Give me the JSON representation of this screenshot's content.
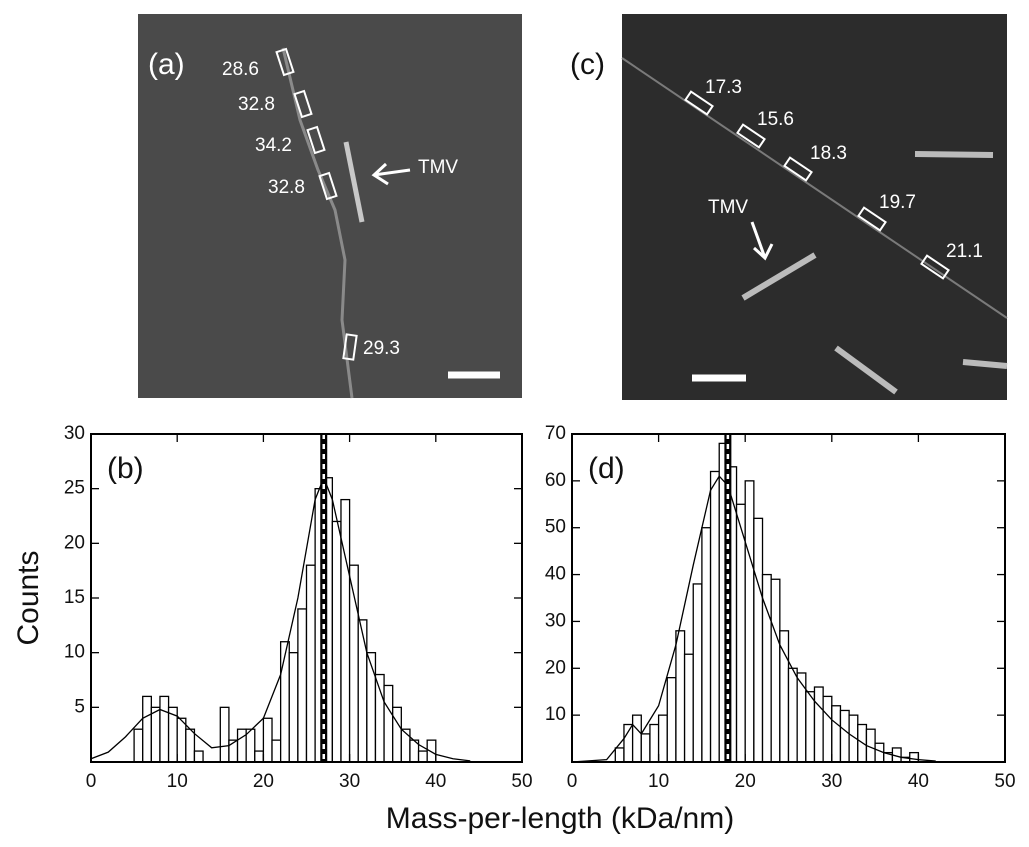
{
  "figure": {
    "xlabel": "Mass-per-length (kDa/nm)",
    "ylabel": "Counts"
  },
  "images": [
    {
      "panel": "(a)",
      "arrow_label": "TMV",
      "annotations": [
        28.6,
        32.8,
        34.2,
        32.8,
        29.3
      ]
    },
    {
      "panel": "(c)",
      "arrow_label": "TMV",
      "annotations": [
        17.3,
        15.6,
        18.3,
        19.7,
        21.1
      ]
    }
  ],
  "chart_data": [
    {
      "type": "histogram",
      "panel": "(b)",
      "bins": [
        5,
        6,
        7,
        8,
        9,
        10,
        11,
        12,
        13,
        14,
        15,
        16,
        17,
        18,
        19,
        20,
        21,
        22,
        23,
        24,
        25,
        26,
        27,
        28,
        29,
        30,
        31,
        32,
        33,
        34,
        35,
        36,
        37,
        38,
        39,
        40
      ],
      "values": [
        3,
        6,
        5,
        6,
        5,
        4,
        3,
        1,
        0,
        0,
        5,
        2,
        3,
        3,
        1,
        4,
        2,
        11,
        10,
        14,
        18,
        25,
        26,
        22,
        24,
        18,
        13,
        10,
        8,
        7,
        5,
        3,
        2,
        1,
        2
      ],
      "fit": {
        "x": [
          0,
          2,
          4,
          6,
          8,
          10,
          12,
          14,
          16,
          18,
          20,
          22,
          24,
          26,
          27,
          28,
          30,
          32,
          34,
          36,
          38,
          40,
          42,
          44
        ],
        "y": [
          0.3,
          0.9,
          2.3,
          4,
          4.8,
          4.2,
          2.6,
          1.3,
          1.5,
          2.5,
          4,
          8,
          15,
          24,
          26,
          24,
          17,
          10,
          5.5,
          3,
          1.6,
          0.7,
          0.3,
          0.1
        ]
      },
      "marker": 27,
      "xlim": [
        0,
        50
      ],
      "xticks": [
        0,
        10,
        20,
        30,
        40,
        50
      ],
      "ylim": [
        0,
        30
      ],
      "yticks": [
        5,
        10,
        15,
        20,
        25,
        30
      ]
    },
    {
      "type": "histogram",
      "panel": "(d)",
      "bins": [
        5,
        6,
        7,
        8,
        9,
        10,
        11,
        12,
        13,
        14,
        15,
        16,
        17,
        18,
        19,
        20,
        21,
        22,
        23,
        24,
        25,
        26,
        27,
        28,
        29,
        30,
        31,
        32,
        33,
        34,
        35,
        36,
        37,
        38,
        39,
        40
      ],
      "values": [
        3,
        8,
        10,
        6,
        8,
        10,
        18,
        28,
        23,
        38,
        50,
        62,
        68,
        63,
        55,
        60,
        52,
        40,
        39,
        28,
        20,
        19,
        15,
        16,
        14,
        12,
        11,
        10,
        8,
        7,
        4,
        2,
        3,
        1,
        2
      ],
      "fit": {
        "x": [
          0,
          4,
          6,
          7,
          8,
          10,
          12,
          14,
          16,
          17,
          18,
          20,
          22,
          24,
          26,
          28,
          30,
          32,
          34,
          36,
          38,
          40,
          42
        ],
        "y": [
          0,
          0.5,
          5,
          8,
          6,
          12,
          25,
          42,
          58,
          61,
          59,
          47,
          35,
          25,
          18,
          13,
          9,
          6,
          3.5,
          2,
          1,
          0.5,
          0.2
        ]
      },
      "marker": 18,
      "xlim": [
        0,
        50
      ],
      "xticks": [
        0,
        10,
        20,
        30,
        40,
        50
      ],
      "ylim": [
        0,
        70
      ],
      "yticks": [
        10,
        20,
        30,
        40,
        50,
        60,
        70
      ]
    }
  ]
}
